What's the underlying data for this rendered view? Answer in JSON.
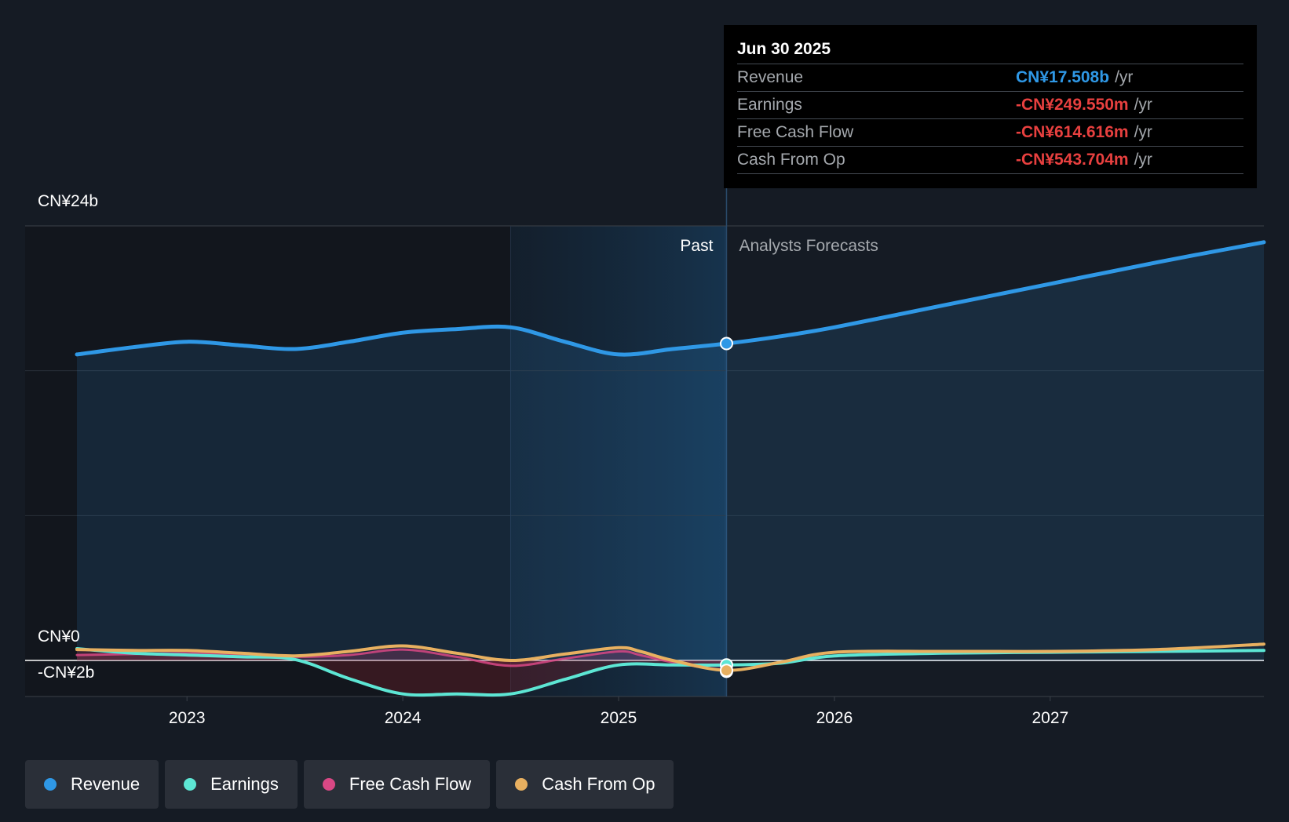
{
  "tooltip": {
    "date": "Jun 30 2025",
    "rows": [
      {
        "label": "Revenue",
        "value": "CN¥17.508b",
        "unit": "/yr",
        "color": "#2f98e6"
      },
      {
        "label": "Earnings",
        "value": "-CN¥249.550m",
        "unit": "/yr",
        "color": "#e8403f"
      },
      {
        "label": "Free Cash Flow",
        "value": "-CN¥614.616m",
        "unit": "/yr",
        "color": "#e8403f"
      },
      {
        "label": "Cash From Op",
        "value": "-CN¥543.704m",
        "unit": "/yr",
        "color": "#e8403f"
      }
    ]
  },
  "legend": [
    {
      "label": "Revenue",
      "color": "#2f98e6"
    },
    {
      "label": "Earnings",
      "color": "#5de6d4"
    },
    {
      "label": "Free Cash Flow",
      "color": "#d94885"
    },
    {
      "label": "Cash From Op",
      "color": "#e8b060"
    }
  ],
  "chart_data": {
    "type": "area",
    "title": "",
    "y_unit": "CN¥ billions",
    "ylim": [
      -2,
      24
    ],
    "y_tick_labels": [
      {
        "value": 24,
        "label": "CN¥24b"
      },
      {
        "value": 0,
        "label": "CN¥0"
      },
      {
        "value": -2,
        "label": "-CN¥2b"
      }
    ],
    "x_tick_labels": [
      {
        "value": 2023,
        "label": "2023"
      },
      {
        "value": 2024,
        "label": "2024"
      },
      {
        "value": 2025,
        "label": "2025"
      },
      {
        "value": 2026,
        "label": "2026"
      },
      {
        "value": 2027,
        "label": "2027"
      }
    ],
    "xlim": [
      2022.25,
      2027.99
    ],
    "past_label": "Past",
    "forecast_label": "Analysts Forecasts",
    "forecast_start": 2025.5,
    "shaded_start": 2024.5,
    "series": [
      {
        "name": "Revenue",
        "color": "#2f98e6",
        "fill": true,
        "x": [
          2022.49,
          2022.75,
          2023.0,
          2023.25,
          2023.5,
          2023.75,
          2024.0,
          2024.25,
          2024.5,
          2024.75,
          2025.0,
          2025.25,
          2025.5,
          2025.75,
          2026.0,
          2026.5,
          2027.0,
          2027.5,
          2027.99
        ],
        "y": [
          16.9,
          17.3,
          17.6,
          17.4,
          17.2,
          17.6,
          18.1,
          18.3,
          18.4,
          17.6,
          16.9,
          17.2,
          17.5,
          17.9,
          18.4,
          19.6,
          20.8,
          22.0,
          23.1
        ]
      },
      {
        "name": "Earnings",
        "color": "#5de6d4",
        "fill": false,
        "x": [
          2022.49,
          2022.75,
          2023.0,
          2023.25,
          2023.5,
          2023.75,
          2024.0,
          2024.25,
          2024.5,
          2024.75,
          2025.0,
          2025.25,
          2025.5,
          2025.75,
          2026.0,
          2026.5,
          2027.0,
          2027.5,
          2027.99
        ],
        "y": [
          0.65,
          0.4,
          0.3,
          0.2,
          0.05,
          -1.0,
          -1.85,
          -1.85,
          -1.85,
          -1.05,
          -0.25,
          -0.25,
          -0.25,
          -0.15,
          0.25,
          0.4,
          0.45,
          0.5,
          0.55
        ]
      },
      {
        "name": "Free Cash Flow",
        "color": "#d94885",
        "fill": true,
        "x": [
          2022.49,
          2022.75,
          2023.0,
          2023.25,
          2023.5,
          2023.75,
          2024.0,
          2024.25,
          2024.5,
          2024.75,
          2025.0,
          2025.1,
          2025.25,
          2025.5
        ],
        "y": [
          0.3,
          0.35,
          0.4,
          0.3,
          0.2,
          0.3,
          0.6,
          0.2,
          -0.3,
          0.1,
          0.5,
          0.3,
          -0.1,
          -0.6
        ]
      },
      {
        "name": "Cash From Op",
        "color": "#e8b060",
        "fill": false,
        "x": [
          2022.49,
          2022.75,
          2023.0,
          2023.25,
          2023.5,
          2023.75,
          2024.0,
          2024.25,
          2024.5,
          2024.75,
          2025.0,
          2025.1,
          2025.25,
          2025.5,
          2025.75,
          2026.0,
          2026.5,
          2027.0,
          2027.5,
          2027.99
        ],
        "y": [
          0.6,
          0.55,
          0.55,
          0.4,
          0.25,
          0.5,
          0.8,
          0.4,
          0.0,
          0.35,
          0.7,
          0.5,
          0.0,
          -0.55,
          -0.1,
          0.45,
          0.5,
          0.5,
          0.6,
          0.9
        ]
      }
    ]
  }
}
